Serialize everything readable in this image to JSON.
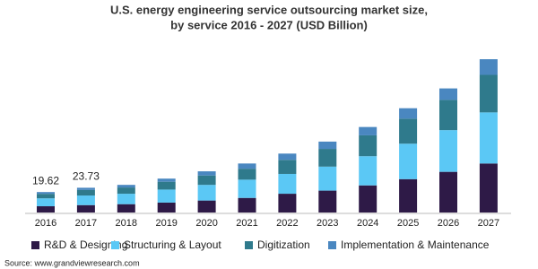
{
  "chart_data": {
    "type": "stacked-bar",
    "title": "U.S. energy engineering service outsourcing market size,",
    "subtitle": "by service 2016 - 2027 (USD Billion)",
    "categories": [
      "2016",
      "2017",
      "2018",
      "2019",
      "2020",
      "2021",
      "2022",
      "2023",
      "2024",
      "2025",
      "2026",
      "2027"
    ],
    "series": [
      {
        "name": "R&D & Designing",
        "color": "#2e1a47",
        "values": [
          6.0,
          7.1,
          8,
          9.5,
          11.5,
          14,
          18,
          21,
          26,
          32,
          39,
          47
        ]
      },
      {
        "name": "Structuring & Layout",
        "color": "#5bc8f5",
        "values": [
          7.6,
          9.2,
          10,
          12.5,
          15,
          17.5,
          19,
          23,
          28,
          34,
          40,
          49
        ]
      },
      {
        "name": "Digitization",
        "color": "#2f7a8c",
        "values": [
          4.3,
          5.3,
          6,
          7.5,
          9,
          10.5,
          13.5,
          17,
          20,
          24,
          29,
          36
        ]
      },
      {
        "name": "Implementation & Maintenance",
        "color": "#4a87c0",
        "values": [
          1.72,
          2.13,
          2.5,
          3,
          4,
          5,
          6,
          7,
          8,
          10,
          11,
          15
        ]
      }
    ],
    "totals": [
      19.62,
      23.73
    ],
    "source": "Source: www.grandviewresearch.com"
  }
}
